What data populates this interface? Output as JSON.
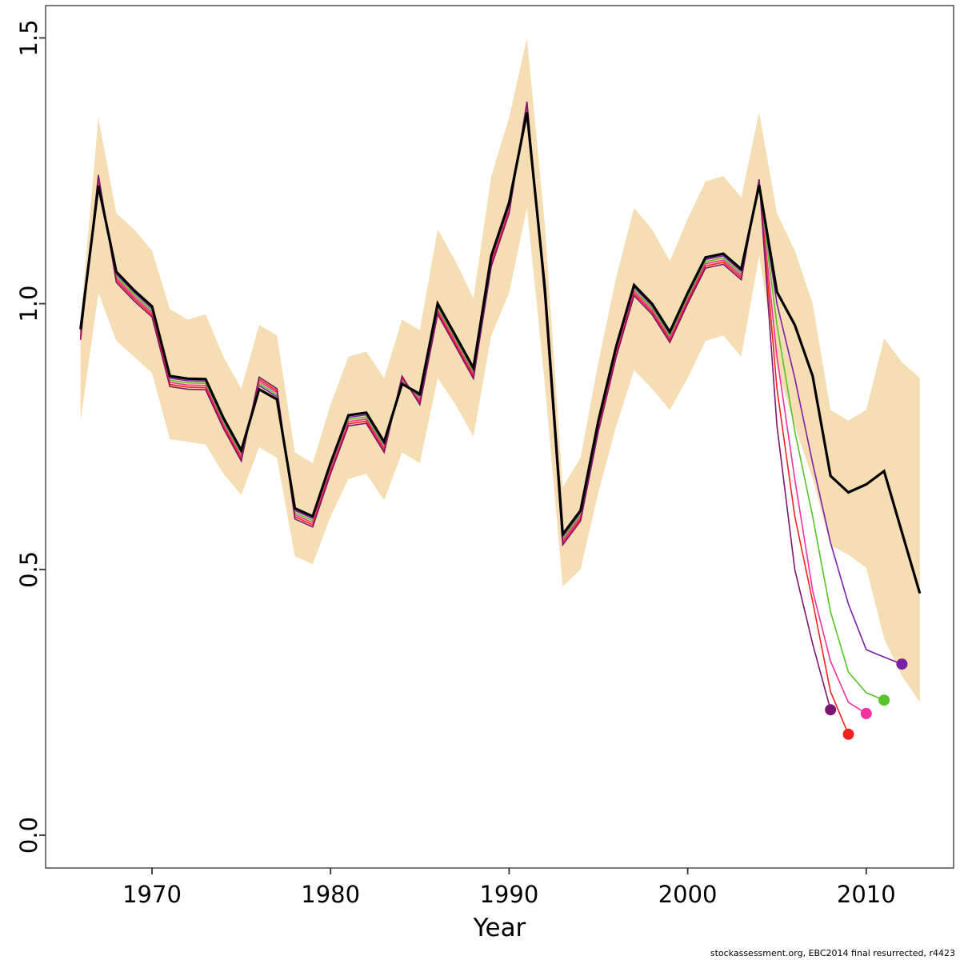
{
  "footer": {
    "text": "stockassessment.org, EBC2014 final resurrected, r4423"
  },
  "colors": {
    "background": "#ffffff",
    "box": "#333333",
    "band": "#f5deb3",
    "assessment": "#000000",
    "peel_2012": "#7b21a8",
    "peel_2011": "#57c229",
    "peel_2010": "#f5309f",
    "peel_2009": "#f42121",
    "peel_2008": "#7c156f"
  },
  "chart_data": {
    "type": "line",
    "title": "",
    "xlabel": "Year",
    "ylabel": "",
    "x_range": [
      1966,
      2013
    ],
    "y_range": [
      0.0,
      1.5
    ],
    "grid": false,
    "legend": "none",
    "x_ticks": [
      {
        "value": 1970,
        "label": "1970"
      },
      {
        "value": 1980,
        "label": "1980"
      },
      {
        "value": 1990,
        "label": "1990"
      },
      {
        "value": 2000,
        "label": "2000"
      },
      {
        "value": 2010,
        "label": "2010"
      }
    ],
    "y_ticks": [
      {
        "value": 0.0,
        "label": "0.0"
      },
      {
        "value": 0.5,
        "label": "0.5"
      },
      {
        "value": 1.0,
        "label": "1.0"
      },
      {
        "value": 1.5,
        "label": "1.5"
      }
    ],
    "years": [
      1966,
      1967,
      1968,
      1969,
      1970,
      1971,
      1972,
      1973,
      1974,
      1975,
      1976,
      1977,
      1978,
      1979,
      1980,
      1981,
      1982,
      1983,
      1984,
      1985,
      1986,
      1987,
      1988,
      1989,
      1990,
      1991,
      1992,
      1993,
      1994,
      1995,
      1996,
      1997,
      1998,
      1999,
      2000,
      2001,
      2002,
      2003,
      2004,
      2005,
      2006,
      2007,
      2008,
      2009,
      2010,
      2011,
      2012,
      2013
    ],
    "confidence_band": {
      "name": "confidence interval",
      "color": "#f5deb3",
      "start_year": 1966,
      "upper": [
        0.97,
        1.35,
        1.17,
        1.14,
        1.1,
        0.99,
        0.97,
        0.98,
        0.9,
        0.84,
        0.96,
        0.94,
        0.72,
        0.7,
        0.81,
        0.9,
        0.91,
        0.86,
        0.97,
        0.95,
        1.14,
        1.08,
        1.01,
        1.24,
        1.35,
        1.5,
        1.15,
        0.655,
        0.71,
        0.89,
        1.05,
        1.18,
        1.14,
        1.08,
        1.16,
        1.23,
        1.24,
        1.2,
        1.36,
        1.17,
        1.1,
        1.0,
        0.8,
        0.78,
        0.8,
        0.935,
        0.89,
        0.86
      ],
      "lower": [
        0.78,
        1.02,
        0.93,
        0.9,
        0.87,
        0.745,
        0.74,
        0.735,
        0.68,
        0.64,
        0.73,
        0.71,
        0.525,
        0.51,
        0.6,
        0.67,
        0.68,
        0.63,
        0.72,
        0.7,
        0.86,
        0.81,
        0.75,
        0.94,
        1.02,
        1.18,
        0.85,
        0.468,
        0.5,
        0.645,
        0.77,
        0.875,
        0.84,
        0.8,
        0.86,
        0.93,
        0.94,
        0.9,
        1.09,
        0.88,
        0.77,
        0.67,
        0.545,
        0.528,
        0.503,
        0.37,
        0.3,
        0.25
      ]
    },
    "series": [
      {
        "name": "final assessment",
        "color": "#000000",
        "start_year": 1966,
        "end_year": 2013,
        "values": [
          0.952,
          1.222,
          1.06,
          1.025,
          0.995,
          0.864,
          0.859,
          0.858,
          0.785,
          0.724,
          0.839,
          0.82,
          0.615,
          0.6,
          0.7,
          0.79,
          0.795,
          0.74,
          0.849,
          0.83,
          1.0,
          0.94,
          0.879,
          1.09,
          1.19,
          1.36,
          1.03,
          0.566,
          0.611,
          0.78,
          0.92,
          1.035,
          1.0,
          0.947,
          1.02,
          1.087,
          1.094,
          1.065,
          1.223,
          1.022,
          0.96,
          0.864,
          0.676,
          0.645,
          0.66,
          0.685,
          0.57,
          0.455
        ]
      }
    ],
    "retro_series": [
      {
        "name": "retro peel 2012",
        "color": "#7b21a8",
        "start_year": 1966,
        "end_year": 2012,
        "endpoint": {
          "year": 2012,
          "value": 0.322
        },
        "values": [
          0.948,
          1.226,
          1.056,
          1.021,
          0.991,
          0.86,
          0.855,
          0.854,
          0.781,
          0.72,
          0.846,
          0.825,
          0.611,
          0.596,
          0.696,
          0.786,
          0.791,
          0.736,
          0.852,
          0.826,
          0.996,
          0.936,
          0.875,
          1.086,
          1.186,
          1.364,
          1.026,
          0.562,
          0.607,
          0.776,
          0.916,
          1.031,
          0.996,
          0.943,
          1.016,
          1.083,
          1.09,
          1.061,
          1.221,
          1.0,
          0.86,
          0.7,
          0.55,
          0.435,
          0.349,
          0.335,
          0.322
        ]
      },
      {
        "name": "retro peel 2011",
        "color": "#57c229",
        "start_year": 1966,
        "end_year": 2011,
        "endpoint": {
          "year": 2011,
          "value": 0.254
        },
        "values": [
          0.944,
          1.23,
          1.052,
          1.017,
          0.987,
          0.856,
          0.851,
          0.85,
          0.777,
          0.716,
          0.85,
          0.829,
          0.607,
          0.592,
          0.692,
          0.782,
          0.787,
          0.732,
          0.855,
          0.822,
          0.992,
          0.932,
          0.871,
          1.082,
          1.182,
          1.368,
          1.022,
          0.558,
          0.603,
          0.772,
          0.912,
          1.027,
          0.992,
          0.939,
          1.012,
          1.079,
          1.086,
          1.057,
          1.225,
          0.96,
          0.76,
          0.6,
          0.42,
          0.307,
          0.268,
          0.254
        ]
      },
      {
        "name": "retro peel 2010",
        "color": "#f5309f",
        "start_year": 1966,
        "end_year": 2010,
        "endpoint": {
          "year": 2010,
          "value": 0.229
        },
        "values": [
          0.94,
          1.234,
          1.048,
          1.013,
          0.983,
          0.852,
          0.847,
          0.846,
          0.773,
          0.712,
          0.854,
          0.833,
          0.603,
          0.588,
          0.688,
          0.778,
          0.783,
          0.728,
          0.858,
          0.818,
          0.988,
          0.928,
          0.867,
          1.078,
          1.178,
          1.372,
          1.018,
          0.554,
          0.599,
          0.768,
          0.908,
          1.023,
          0.988,
          0.935,
          1.008,
          1.075,
          1.082,
          1.053,
          1.228,
          0.9,
          0.67,
          0.46,
          0.327,
          0.25,
          0.229
        ]
      },
      {
        "name": "retro peel 2009",
        "color": "#f42121",
        "start_year": 1966,
        "end_year": 2009,
        "endpoint": {
          "year": 2009,
          "value": 0.19
        },
        "values": [
          0.936,
          1.238,
          1.044,
          1.009,
          0.979,
          0.848,
          0.843,
          0.842,
          0.769,
          0.708,
          0.858,
          0.836,
          0.599,
          0.584,
          0.684,
          0.774,
          0.779,
          0.724,
          0.861,
          0.814,
          0.984,
          0.924,
          0.863,
          1.074,
          1.174,
          1.376,
          1.014,
          0.55,
          0.595,
          0.764,
          0.904,
          1.019,
          0.984,
          0.931,
          1.004,
          1.071,
          1.078,
          1.049,
          1.231,
          0.84,
          0.6,
          0.44,
          0.27,
          0.19
        ]
      },
      {
        "name": "retro peel 2008",
        "color": "#7c156f",
        "start_year": 1966,
        "end_year": 2008,
        "endpoint": {
          "year": 2008,
          "value": 0.236
        },
        "values": [
          0.932,
          1.242,
          1.04,
          1.005,
          0.975,
          0.844,
          0.839,
          0.838,
          0.765,
          0.704,
          0.862,
          0.84,
          0.595,
          0.58,
          0.68,
          0.77,
          0.775,
          0.72,
          0.864,
          0.81,
          0.98,
          0.92,
          0.859,
          1.07,
          1.17,
          1.38,
          1.01,
          0.546,
          0.591,
          0.76,
          0.9,
          1.015,
          0.98,
          0.927,
          1.0,
          1.067,
          1.074,
          1.045,
          1.234,
          0.77,
          0.5,
          0.36,
          0.236
        ]
      }
    ]
  }
}
